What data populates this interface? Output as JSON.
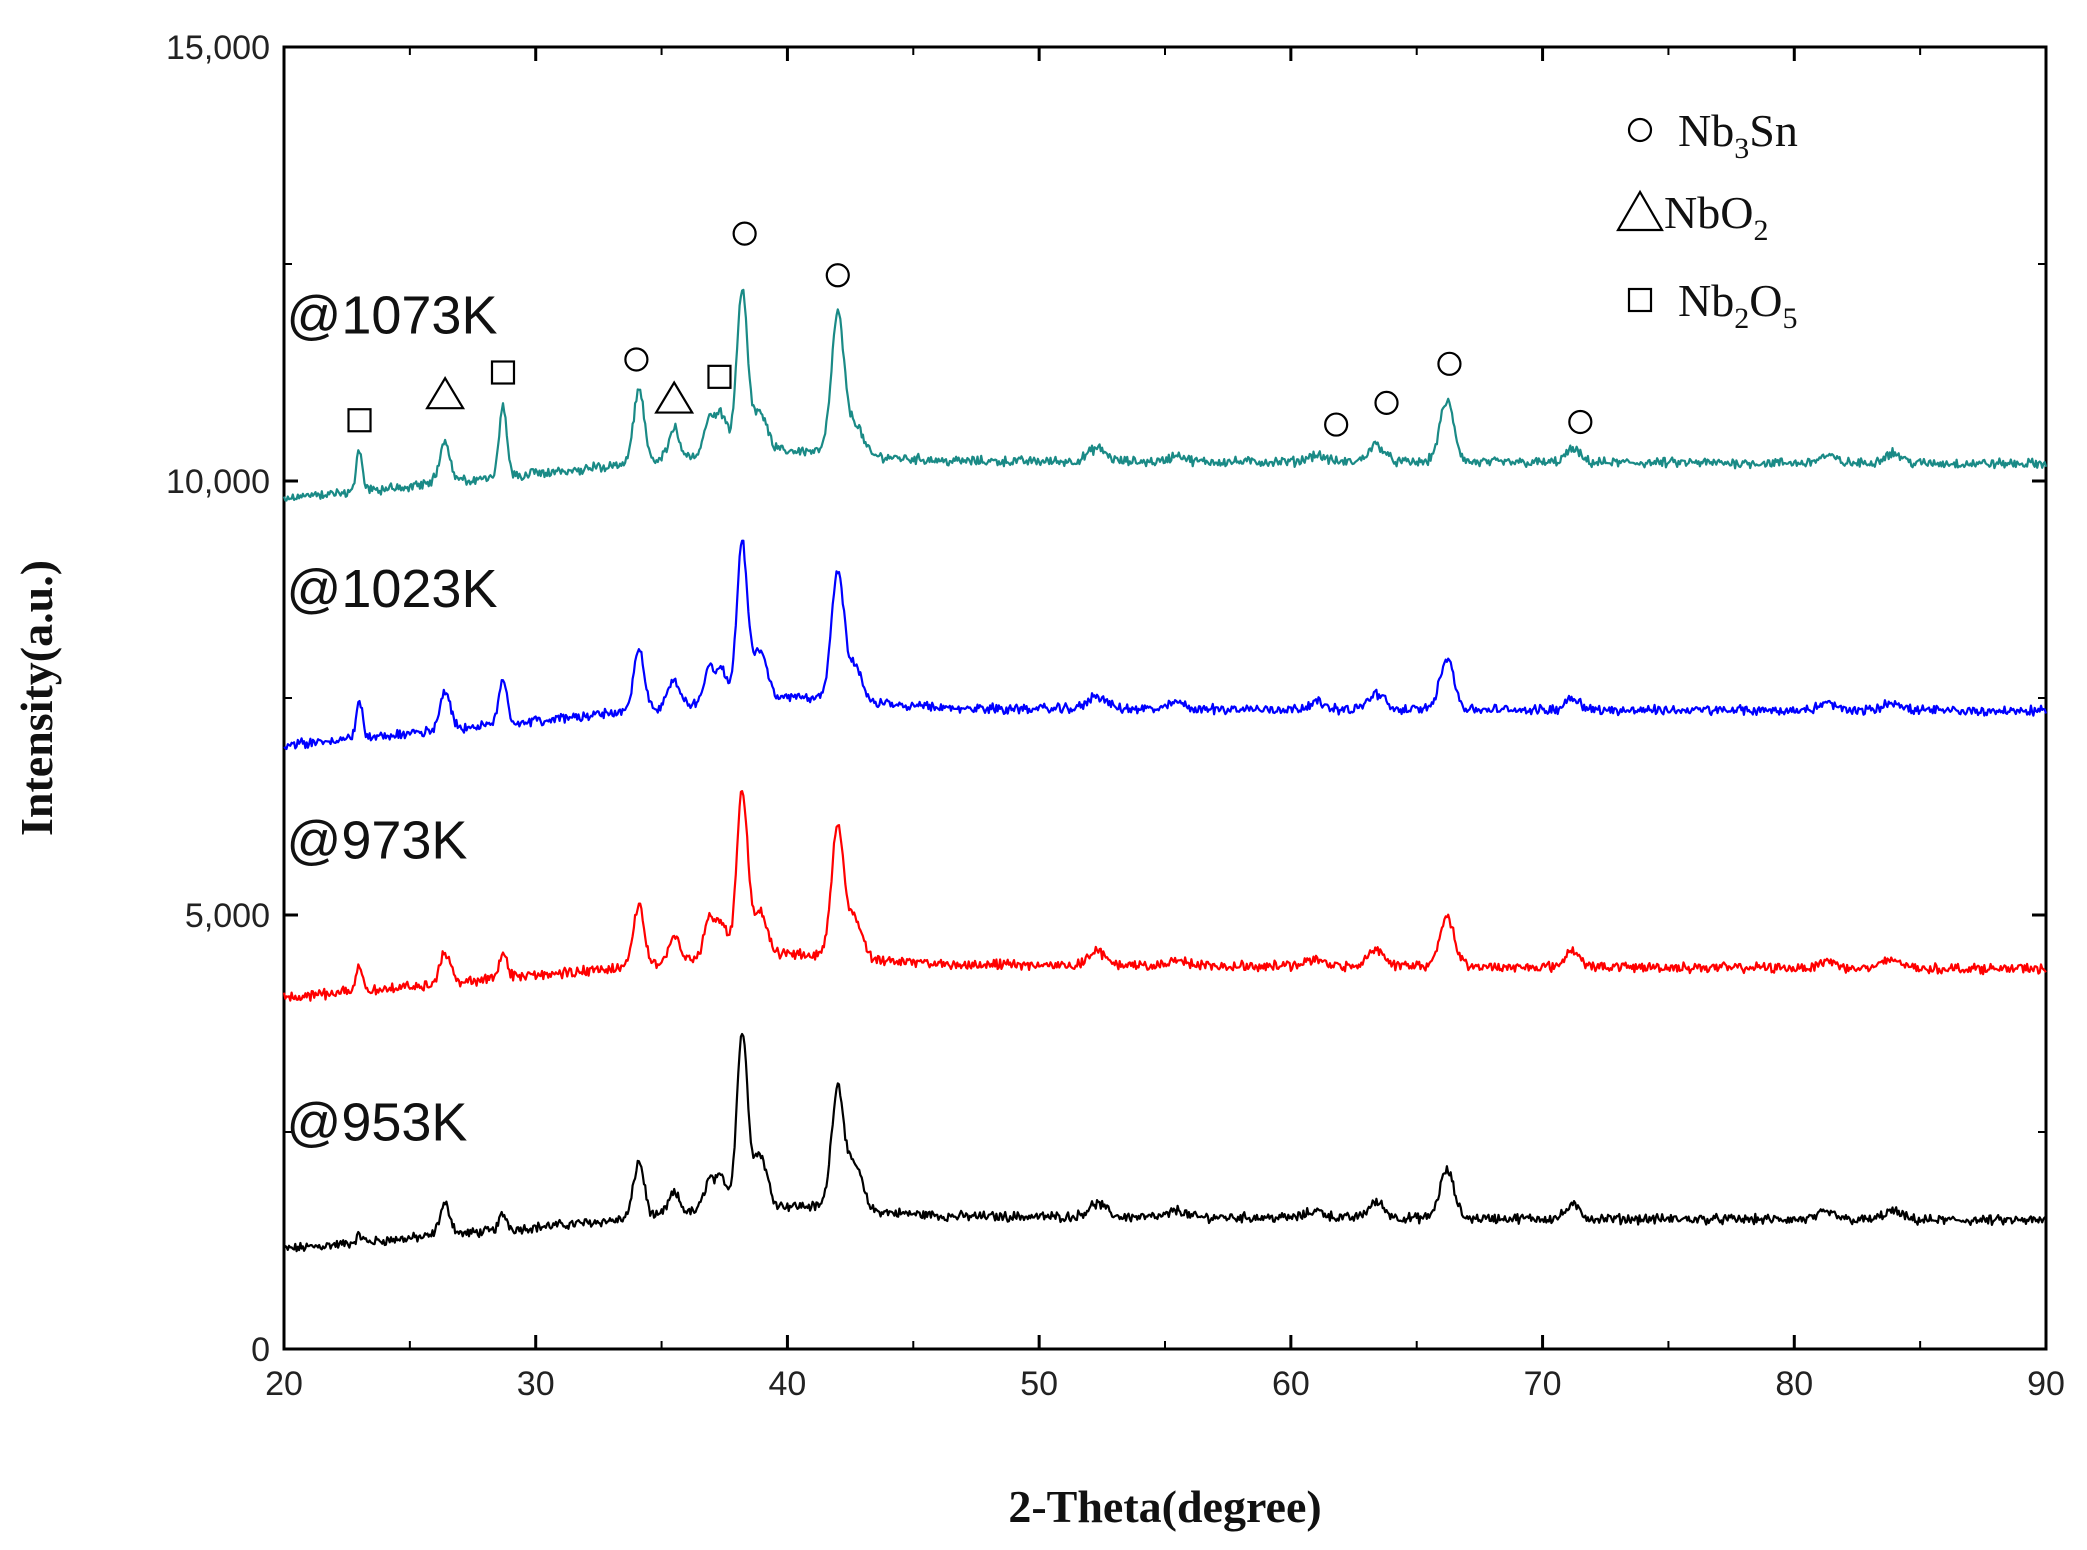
{
  "chart_data": {
    "type": "line",
    "title": "",
    "xlabel": "2-Theta(degree)",
    "ylabel": "Intensity(a.u.)",
    "xlim": [
      20,
      90
    ],
    "ylim": [
      0,
      15000
    ],
    "xticks": [
      20,
      30,
      40,
      50,
      60,
      70,
      80,
      90
    ],
    "xtick_labels": [
      "20",
      "30",
      "40",
      "50",
      "60",
      "70",
      "80",
      "90"
    ],
    "yticks": [
      0,
      5000,
      10000,
      15000
    ],
    "ytick_labels": [
      "0",
      "5,000",
      "10,000",
      "15,000"
    ],
    "legend": {
      "position": "top-right",
      "entries": [
        {
          "marker": "circle",
          "name": "Nb",
          "sub": "3",
          "rest": "Sn"
        },
        {
          "marker": "triangle",
          "name": "NbO",
          "sub": "2",
          "rest": ""
        },
        {
          "marker": "square",
          "name": "Nb",
          "sub": "2",
          "rest": "O",
          "sub2": "5"
        }
      ]
    },
    "peaks": [
      {
        "x": 23.0,
        "w": 0.18,
        "a": [
          80,
          300,
          420,
          500
        ]
      },
      {
        "x": 26.4,
        "w": 0.3,
        "a": [
          350,
          350,
          450,
          450
        ]
      },
      {
        "x": 28.7,
        "w": 0.22,
        "a": [
          180,
          300,
          550,
          800
        ]
      },
      {
        "x": 34.1,
        "w": 0.3,
        "a": [
          650,
          700,
          700,
          850
        ]
      },
      {
        "x": 35.5,
        "w": 0.3,
        "a": [
          230,
          300,
          300,
          350
        ]
      },
      {
        "x": 36.9,
        "w": 0.3,
        "a": [
          350,
          450,
          400,
          420
        ]
      },
      {
        "x": 37.4,
        "w": 0.3,
        "a": [
          350,
          400,
          350,
          450
        ]
      },
      {
        "x": 38.2,
        "w": 0.3,
        "a": [
          2000,
          1900,
          1800,
          1850
        ]
      },
      {
        "x": 38.9,
        "w": 0.4,
        "a": [
          600,
          500,
          550,
          450
        ]
      },
      {
        "x": 42.0,
        "w": 0.35,
        "a": [
          1400,
          1500,
          1500,
          1600
        ]
      },
      {
        "x": 42.7,
        "w": 0.4,
        "a": [
          500,
          450,
          400,
          350
        ]
      },
      {
        "x": 52.3,
        "w": 0.5,
        "a": [
          150,
          150,
          150,
          150
        ]
      },
      {
        "x": 55.5,
        "w": 0.4,
        "a": [
          80,
          80,
          80,
          80
        ]
      },
      {
        "x": 61.0,
        "w": 0.5,
        "a": [
          80,
          80,
          80,
          80
        ]
      },
      {
        "x": 63.4,
        "w": 0.45,
        "a": [
          180,
          200,
          180,
          200
        ]
      },
      {
        "x": 66.2,
        "w": 0.4,
        "a": [
          550,
          580,
          600,
          700
        ]
      },
      {
        "x": 71.2,
        "w": 0.4,
        "a": [
          150,
          200,
          150,
          150
        ]
      },
      {
        "x": 81.3,
        "w": 0.5,
        "a": [
          80,
          80,
          80,
          80
        ]
      },
      {
        "x": 83.9,
        "w": 0.5,
        "a": [
          100,
          100,
          100,
          120
        ]
      }
    ],
    "series": [
      {
        "name": "@953K",
        "color": "#000000",
        "baseline": [
          1150,
          1530,
          1480
        ],
        "noise": 45,
        "label_x": 20.1,
        "label_y": 2400
      },
      {
        "name": "@973K",
        "color": "#ff0000",
        "baseline": [
          4050,
          4430,
          4380
        ],
        "noise": 45,
        "label_x": 20.1,
        "label_y": 5650
      },
      {
        "name": "@1023K",
        "color": "#0000ff",
        "baseline": [
          6950,
          7380,
          7350
        ],
        "noise": 45,
        "label_x": 20.1,
        "label_y": 8550
      },
      {
        "name": "@1073K",
        "color": "#1a8a86",
        "baseline": [
          9800,
          10230,
          10200
        ],
        "noise": 45,
        "label_x": 20.1,
        "label_y": 11700
      }
    ],
    "annotations": [
      {
        "marker": "square",
        "x": 23.0,
        "y": 10700
      },
      {
        "marker": "triangle",
        "x": 26.4,
        "y": 11000
      },
      {
        "marker": "square",
        "x": 28.7,
        "y": 11250
      },
      {
        "marker": "circle",
        "x": 34.0,
        "y": 11400
      },
      {
        "marker": "triangle",
        "x": 35.5,
        "y": 10950
      },
      {
        "marker": "square",
        "x": 37.3,
        "y": 11200
      },
      {
        "marker": "circle",
        "x": 38.3,
        "y": 12850
      },
      {
        "marker": "circle",
        "x": 42.0,
        "y": 12370
      },
      {
        "marker": "circle",
        "x": 61.8,
        "y": 10650
      },
      {
        "marker": "circle",
        "x": 63.8,
        "y": 10900
      },
      {
        "marker": "circle",
        "x": 66.3,
        "y": 11350
      },
      {
        "marker": "circle",
        "x": 71.5,
        "y": 10680
      }
    ]
  }
}
